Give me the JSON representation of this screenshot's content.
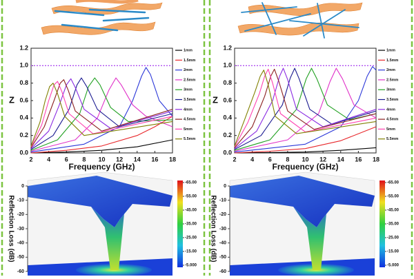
{
  "chart_data": [
    {
      "type": "line",
      "xlabel": "Frequency (GHz)",
      "ylabel": "Z",
      "xlim": [
        2,
        18
      ],
      "xticks": [
        2,
        4,
        6,
        8,
        10,
        12,
        14,
        16,
        18
      ],
      "ylim": [
        0,
        1.2
      ],
      "yticks": [
        {
          "value": 0,
          "label": "0.0"
        },
        0.2,
        0.4,
        0.6,
        0.8,
        {
          "value": 1,
          "label": "1.0"
        },
        1.2
      ],
      "reference_line": 1,
      "reference_line_color": "#b050f0",
      "series": [
        {
          "name": "1mm",
          "color": "#000000",
          "x": [
            2,
            6,
            10,
            14,
            18
          ],
          "values": [
            0.0,
            0.01,
            0.03,
            0.07,
            0.15
          ]
        },
        {
          "name": "1.5mm",
          "color": "#e8262a",
          "x": [
            2,
            6,
            10,
            14,
            16,
            18
          ],
          "values": [
            0.0,
            0.03,
            0.08,
            0.2,
            0.3,
            0.42
          ]
        },
        {
          "name": "2mm",
          "color": "#2a36d8",
          "x": [
            2,
            8,
            12,
            13.5,
            14.5,
            15,
            15.5,
            16.5,
            18
          ],
          "values": [
            0.01,
            0.1,
            0.3,
            0.6,
            0.88,
            0.98,
            0.9,
            0.6,
            0.42
          ]
        },
        {
          "name": "2.5mm",
          "color": "#e030c8",
          "x": [
            2,
            7,
            9.5,
            10.8,
            11.6,
            12.2,
            13.5,
            15,
            18
          ],
          "values": [
            0.02,
            0.15,
            0.4,
            0.72,
            0.86,
            0.78,
            0.55,
            0.42,
            0.3
          ]
        },
        {
          "name": "3mm",
          "color": "#20a020",
          "x": [
            2,
            5,
            7.5,
            8.5,
            9.2,
            9.8,
            11,
            13,
            18
          ],
          "values": [
            0.03,
            0.15,
            0.45,
            0.76,
            0.86,
            0.78,
            0.52,
            0.36,
            0.38
          ]
        },
        {
          "name": "3.5mm",
          "color": "#1a1a90",
          "x": [
            2,
            4.5,
            6.3,
            7.2,
            7.7,
            8.3,
            9.5,
            12,
            18
          ],
          "values": [
            0.04,
            0.2,
            0.5,
            0.78,
            0.86,
            0.76,
            0.5,
            0.3,
            0.45
          ]
        },
        {
          "name": "4mm",
          "color": "#8a2be2",
          "x": [
            2,
            4,
            5.2,
            6,
            6.5,
            7,
            8,
            11,
            18
          ],
          "values": [
            0.05,
            0.25,
            0.55,
            0.78,
            0.85,
            0.75,
            0.5,
            0.28,
            0.48
          ]
        },
        {
          "name": "4.5mm",
          "color": "#8b2020",
          "x": [
            2,
            3.5,
            4.6,
            5.3,
            5.7,
            6.2,
            7,
            10,
            18
          ],
          "values": [
            0.06,
            0.3,
            0.6,
            0.8,
            0.84,
            0.72,
            0.48,
            0.25,
            0.5
          ]
        },
        {
          "name": "5mm",
          "color": "#ff40b0",
          "x": [
            2,
            3.2,
            4,
            4.6,
            5,
            5.5,
            6.3,
            9,
            18
          ],
          "values": [
            0.07,
            0.32,
            0.6,
            0.78,
            0.82,
            0.7,
            0.45,
            0.22,
            0.42
          ]
        },
        {
          "name": "5.5mm",
          "color": "#808000",
          "x": [
            2,
            3,
            3.6,
            4.1,
            4.5,
            5,
            5.8,
            8,
            18
          ],
          "values": [
            0.08,
            0.35,
            0.6,
            0.76,
            0.8,
            0.68,
            0.42,
            0.2,
            0.36
          ]
        }
      ]
    },
    {
      "type": "line",
      "xlabel": "Frequency (GHz)",
      "ylabel": "Z",
      "xlim": [
        2,
        18
      ],
      "xticks": [
        2,
        4,
        6,
        8,
        10,
        12,
        14,
        16,
        18
      ],
      "ylim": [
        0,
        1.2
      ],
      "yticks": [
        {
          "value": 0,
          "label": "0.0"
        },
        0.2,
        0.4,
        0.6,
        0.8,
        {
          "value": 1,
          "label": "1.0"
        },
        1.2
      ],
      "reference_line": 1,
      "reference_line_color": "#b050f0",
      "series": [
        {
          "name": "1mm",
          "color": "#000000",
          "x": [
            2,
            6,
            10,
            14,
            18
          ],
          "values": [
            0.0,
            0.005,
            0.01,
            0.03,
            0.06
          ]
        },
        {
          "name": "1.5mm",
          "color": "#e8262a",
          "x": [
            2,
            6,
            10,
            14,
            18
          ],
          "values": [
            0.0,
            0.02,
            0.05,
            0.14,
            0.3
          ]
        },
        {
          "name": "2mm",
          "color": "#2a36d8",
          "x": [
            2,
            10,
            14,
            16,
            17,
            17.6,
            18
          ],
          "values": [
            0.01,
            0.1,
            0.3,
            0.6,
            0.88,
            0.99,
            0.95
          ]
        },
        {
          "name": "2.5mm",
          "color": "#e030c8",
          "x": [
            2,
            8,
            11.5,
            12.8,
            13.5,
            14.2,
            15.5,
            18
          ],
          "values": [
            0.02,
            0.15,
            0.45,
            0.82,
            0.97,
            0.85,
            0.55,
            0.4
          ]
        },
        {
          "name": "3mm",
          "color": "#20a020",
          "x": [
            2,
            6,
            9,
            10.1,
            10.7,
            11.3,
            12.5,
            15,
            18
          ],
          "values": [
            0.03,
            0.15,
            0.5,
            0.85,
            0.97,
            0.85,
            0.55,
            0.38,
            0.45
          ]
        },
        {
          "name": "3.5mm",
          "color": "#1a1a90",
          "x": [
            2,
            5,
            7.4,
            8.3,
            8.8,
            9.3,
            10.5,
            13,
            18
          ],
          "values": [
            0.04,
            0.2,
            0.55,
            0.86,
            0.97,
            0.85,
            0.5,
            0.33,
            0.48
          ]
        },
        {
          "name": "4mm",
          "color": "#8a2be2",
          "x": [
            2,
            4.5,
            6.3,
            7.1,
            7.5,
            8,
            9,
            12,
            18
          ],
          "values": [
            0.05,
            0.25,
            0.6,
            0.88,
            0.97,
            0.84,
            0.5,
            0.3,
            0.5
          ]
        },
        {
          "name": "4.5mm",
          "color": "#8b2020",
          "x": [
            2,
            4,
            5.4,
            6.1,
            6.5,
            7,
            8,
            11,
            18
          ],
          "values": [
            0.06,
            0.3,
            0.65,
            0.88,
            0.96,
            0.82,
            0.48,
            0.27,
            0.45
          ]
        },
        {
          "name": "5mm",
          "color": "#ff40b0",
          "x": [
            2,
            3.5,
            4.8,
            5.4,
            5.8,
            6.3,
            7.2,
            10,
            18
          ],
          "values": [
            0.07,
            0.35,
            0.68,
            0.88,
            0.96,
            0.8,
            0.45,
            0.24,
            0.4
          ]
        },
        {
          "name": "5.5mm",
          "color": "#808000",
          "x": [
            2,
            3.2,
            4.3,
            4.9,
            5.3,
            5.8,
            6.6,
            9,
            18
          ],
          "values": [
            0.08,
            0.4,
            0.7,
            0.88,
            0.95,
            0.78,
            0.42,
            0.22,
            0.36
          ]
        }
      ]
    },
    {
      "type": "surface",
      "zlabel": "Reflection Loss (dB)",
      "zlim": [
        0,
        -60
      ],
      "zticks": [
        0,
        -10,
        -20,
        -30,
        -40,
        -50,
        -60
      ],
      "clim": [
        -65,
        -5
      ],
      "colormap": [
        "#e0101a",
        "#f0e020",
        "#30d040",
        "#20c0e0",
        "#1030e0"
      ],
      "colorbar_ticks": [
        {
          "value": -65,
          "label": "-65.00"
        },
        {
          "value": -55,
          "label": "-55.00"
        },
        {
          "value": -45,
          "label": "-45.00"
        },
        {
          "value": -35,
          "label": "-35.00"
        },
        {
          "value": -25,
          "label": "-25.00"
        },
        {
          "value": -15,
          "label": "-15.00"
        },
        {
          "value": -5,
          "label": "-5.000"
        }
      ]
    },
    {
      "type": "surface",
      "zlabel": "Reflection Loss (dB)",
      "zlim": [
        0,
        -60
      ],
      "zticks": [
        0,
        -10,
        -20,
        -30,
        -40,
        -50,
        -60
      ],
      "clim": [
        -65,
        -5
      ],
      "colormap": [
        "#e0101a",
        "#f0e020",
        "#30d040",
        "#20c0e0",
        "#1030e0"
      ],
      "colorbar_ticks": [
        {
          "value": -65,
          "label": "-65.00"
        },
        {
          "value": -55,
          "label": "-55.00"
        },
        {
          "value": -45,
          "label": "-45.00"
        },
        {
          "value": -35,
          "label": "-35.00"
        },
        {
          "value": -25,
          "label": "-25.00"
        },
        {
          "value": -15,
          "label": "-15.00"
        },
        {
          "value": -5,
          "label": "-5.000"
        }
      ]
    }
  ]
}
